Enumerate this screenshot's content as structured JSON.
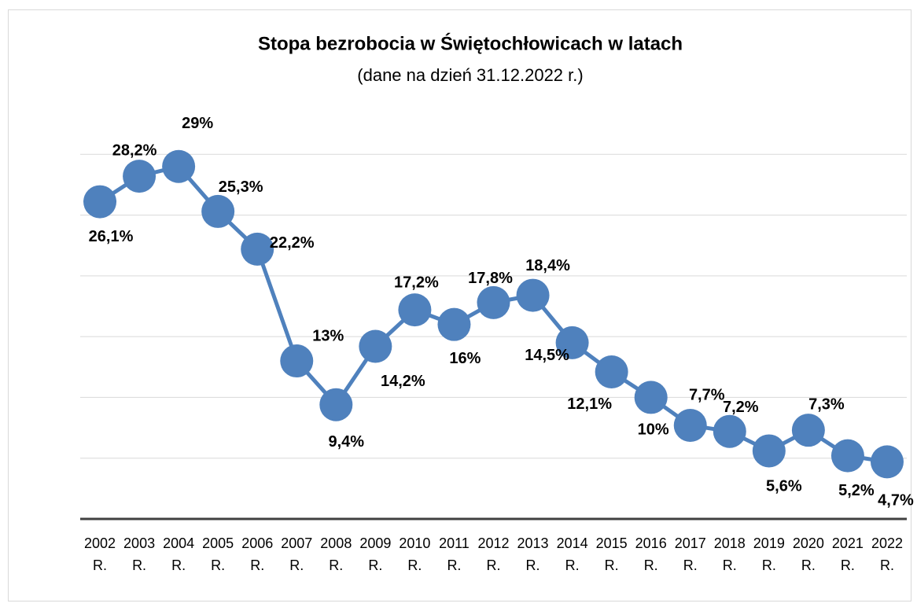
{
  "chart_data": {
    "type": "line",
    "title": "Stopa bezrobocia w Świętochłowicach w latach",
    "subtitle": "(dane na dzień 31.12.2022 r.)",
    "categories": [
      "2002 R.",
      "2003 R.",
      "2004 R.",
      "2005 R.",
      "2006 R.",
      "2007 R.",
      "2008 R.",
      "2009 R.",
      "2010 R.",
      "2011 R.",
      "2012 R.",
      "2013 R.",
      "2014 R.",
      "2015 R.",
      "2016 R.",
      "2017 R.",
      "2018 R.",
      "2019 R.",
      "2020 R.",
      "2021 R.",
      "2022 R."
    ],
    "series": [
      {
        "name": "Stopa bezrobocia",
        "color": "#4f81bd",
        "values": [
          26.1,
          28.2,
          29,
          25.3,
          22.2,
          13,
          9.4,
          14.2,
          17.2,
          16,
          17.8,
          18.4,
          14.5,
          12.1,
          10,
          7.7,
          7.2,
          5.6,
          7.3,
          5.2,
          4.7
        ],
        "value_labels": [
          "26,1%",
          "28,2%",
          "29%",
          "25,3%",
          "22,2%",
          "13%",
          "9,4%",
          "14,2%",
          "17,2%",
          "16%",
          "17,8%",
          "18,4%",
          "14,5%",
          "12,1%",
          "10%",
          "7,7%",
          "7,2%",
          "5,6%",
          "7,3%",
          "5,2%",
          "4,7%"
        ]
      }
    ],
    "ylim": [
      0,
      35
    ],
    "yticks": [
      0,
      5,
      10,
      15,
      20,
      25,
      30
    ],
    "grid": true
  }
}
